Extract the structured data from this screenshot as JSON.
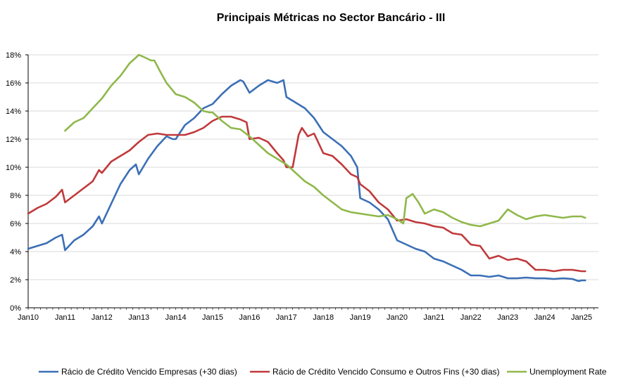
{
  "chart_data": {
    "type": "line",
    "title": "Principais Métricas no Sector Bancário  -  III",
    "xlabel": "",
    "ylabel": "",
    "y_ticks": [
      "0%",
      "2%",
      "4%",
      "6%",
      "8%",
      "10%",
      "12%",
      "14%",
      "16%",
      "18%"
    ],
    "ylim": [
      0,
      18
    ],
    "x_ticks": [
      "Jan10",
      "Jan11",
      "Jan12",
      "Jan13",
      "Jan14",
      "Jan15",
      "Jan16",
      "Jan17",
      "Jan18",
      "Jan19",
      "Jan20",
      "Jan21",
      "Jan22",
      "Jan23",
      "Jan24",
      "Jan25"
    ],
    "xlim": [
      2010.0,
      2025.6
    ],
    "grid": "horizontal",
    "legend_position": "bottom",
    "series": [
      {
        "name": "Rácio de Crédito Vencido Empresas (+30 dias)",
        "color": "#3b6fb6",
        "x": [
          2010.0,
          2010.25,
          2010.5,
          2010.75,
          2010.92,
          2011.0,
          2011.25,
          2011.5,
          2011.75,
          2011.92,
          2012.0,
          2012.25,
          2012.5,
          2012.75,
          2012.92,
          2013.0,
          2013.25,
          2013.5,
          2013.75,
          2013.92,
          2014.0,
          2014.25,
          2014.5,
          2014.75,
          2015.0,
          2015.25,
          2015.5,
          2015.75,
          2015.83,
          2016.0,
          2016.25,
          2016.5,
          2016.75,
          2016.92,
          2017.0,
          2017.25,
          2017.5,
          2017.75,
          2018.0,
          2018.25,
          2018.5,
          2018.75,
          2018.92,
          2019.0,
          2019.25,
          2019.5,
          2019.75,
          2020.0,
          2020.25,
          2020.5,
          2020.75,
          2021.0,
          2021.25,
          2021.5,
          2021.75,
          2022.0,
          2022.25,
          2022.5,
          2022.75,
          2023.0,
          2023.25,
          2023.5,
          2023.75,
          2024.0,
          2024.25,
          2024.5,
          2024.75,
          2024.92,
          2025.0,
          2025.1
        ],
        "values": [
          4.2,
          4.4,
          4.6,
          5.0,
          5.2,
          4.1,
          4.8,
          5.2,
          5.8,
          6.5,
          6.0,
          7.4,
          8.8,
          9.8,
          10.2,
          9.5,
          10.6,
          11.5,
          12.2,
          12.0,
          12.0,
          13.0,
          13.5,
          14.2,
          14.5,
          15.2,
          15.8,
          16.2,
          16.1,
          15.3,
          15.8,
          16.2,
          16.0,
          16.2,
          15.0,
          14.6,
          14.2,
          13.5,
          12.5,
          12.0,
          11.5,
          10.8,
          10.0,
          7.8,
          7.5,
          7.0,
          6.3,
          4.8,
          4.5,
          4.2,
          4.0,
          3.5,
          3.3,
          3.0,
          2.7,
          2.3,
          2.3,
          2.2,
          2.3,
          2.1,
          2.1,
          2.15,
          2.1,
          2.1,
          2.05,
          2.1,
          2.05,
          1.9,
          1.95,
          1.95
        ]
      },
      {
        "name": "Rácio de Crédito Vencido Consumo e Outros Fins (+30 dias)",
        "color": "#c0393b",
        "x": [
          2010.0,
          2010.25,
          2010.5,
          2010.75,
          2010.92,
          2011.0,
          2011.25,
          2011.5,
          2011.75,
          2011.92,
          2012.0,
          2012.25,
          2012.5,
          2012.75,
          2013.0,
          2013.25,
          2013.5,
          2013.75,
          2014.0,
          2014.25,
          2014.5,
          2014.75,
          2015.0,
          2015.25,
          2015.5,
          2015.75,
          2015.92,
          2016.0,
          2016.25,
          2016.5,
          2016.75,
          2016.92,
          2017.0,
          2017.17,
          2017.33,
          2017.42,
          2017.58,
          2017.75,
          2018.0,
          2018.25,
          2018.5,
          2018.75,
          2018.92,
          2019.0,
          2019.25,
          2019.5,
          2019.75,
          2020.0,
          2020.25,
          2020.5,
          2020.75,
          2021.0,
          2021.25,
          2021.5,
          2021.75,
          2022.0,
          2022.25,
          2022.5,
          2022.75,
          2023.0,
          2023.25,
          2023.5,
          2023.75,
          2024.0,
          2024.25,
          2024.5,
          2024.75,
          2025.0,
          2025.1
        ],
        "values": [
          6.7,
          7.1,
          7.4,
          7.9,
          8.4,
          7.5,
          8.0,
          8.5,
          9.0,
          9.8,
          9.6,
          10.4,
          10.8,
          11.2,
          11.8,
          12.3,
          12.4,
          12.3,
          12.3,
          12.3,
          12.5,
          12.8,
          13.3,
          13.6,
          13.6,
          13.4,
          13.2,
          12.0,
          12.1,
          11.8,
          11.0,
          10.5,
          10.0,
          10.0,
          12.3,
          12.8,
          12.2,
          12.4,
          11.0,
          10.8,
          10.2,
          9.5,
          9.3,
          8.8,
          8.3,
          7.5,
          7.0,
          6.2,
          6.3,
          6.1,
          6.0,
          5.8,
          5.7,
          5.3,
          5.2,
          4.5,
          4.4,
          3.5,
          3.7,
          3.4,
          3.5,
          3.3,
          2.7,
          2.7,
          2.6,
          2.7,
          2.7,
          2.6,
          2.6
        ]
      },
      {
        "name": "Unemployment Rate",
        "color": "#8fb84a",
        "x": [
          2011.0,
          2011.25,
          2011.5,
          2011.75,
          2012.0,
          2012.25,
          2012.5,
          2012.75,
          2012.92,
          2013.0,
          2013.17,
          2013.33,
          2013.42,
          2013.58,
          2013.75,
          2014.0,
          2014.25,
          2014.5,
          2014.75,
          2014.92,
          2015.0,
          2015.25,
          2015.5,
          2015.75,
          2016.0,
          2016.25,
          2016.5,
          2016.75,
          2017.0,
          2017.25,
          2017.5,
          2017.75,
          2018.0,
          2018.25,
          2018.5,
          2018.75,
          2019.0,
          2019.25,
          2019.5,
          2019.75,
          2020.0,
          2020.17,
          2020.25,
          2020.42,
          2020.58,
          2020.75,
          2021.0,
          2021.25,
          2021.5,
          2021.75,
          2022.0,
          2022.25,
          2022.5,
          2022.75,
          2023.0,
          2023.25,
          2023.5,
          2023.75,
          2024.0,
          2024.25,
          2024.5,
          2024.75,
          2025.0,
          2025.1
        ],
        "values": [
          12.6,
          13.2,
          13.5,
          14.2,
          14.9,
          15.8,
          16.5,
          17.4,
          17.8,
          18.0,
          17.8,
          17.6,
          17.6,
          16.8,
          16.0,
          15.2,
          15.0,
          14.6,
          14.0,
          13.9,
          13.9,
          13.3,
          12.8,
          12.7,
          12.2,
          11.6,
          11.0,
          10.6,
          10.2,
          9.6,
          9.0,
          8.6,
          8.0,
          7.5,
          7.0,
          6.8,
          6.7,
          6.6,
          6.5,
          6.6,
          6.3,
          6.0,
          7.8,
          8.1,
          7.5,
          6.7,
          7.0,
          6.8,
          6.4,
          6.1,
          5.9,
          5.8,
          6.0,
          6.2,
          7.0,
          6.6,
          6.3,
          6.5,
          6.6,
          6.5,
          6.4,
          6.5,
          6.5,
          6.4
        ]
      }
    ]
  }
}
